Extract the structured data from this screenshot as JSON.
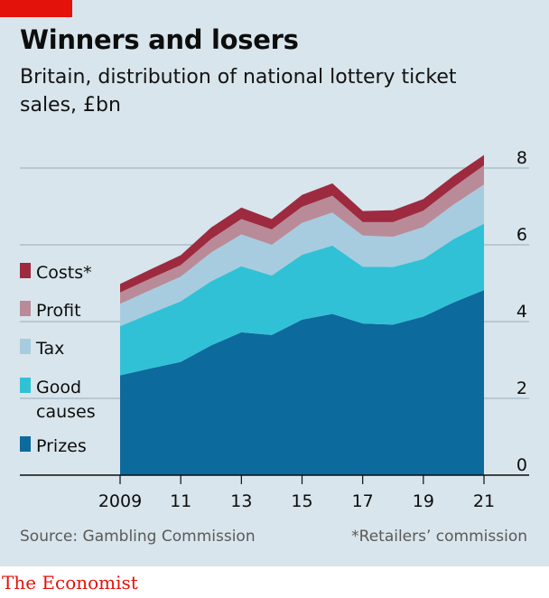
{
  "header": {
    "title": "Winners and losers",
    "subtitle": "Britain, distribution of national lottery ticket sales, £bn"
  },
  "footer": {
    "source": "Source: Gambling Commission",
    "note": "*Retailers’ commission",
    "brand": "The Economist"
  },
  "colors": {
    "background": "#d8e5ec",
    "accent_red": "#e3120b",
    "prizes": "#0d6a9d",
    "good_causes": "#31c1d6",
    "tax": "#a7cce0",
    "profit": "#b98b98",
    "costs": "#9e2a3f"
  },
  "chart_data": {
    "type": "area",
    "stacked": true,
    "x": [
      2009,
      2010,
      2011,
      2012,
      2013,
      2014,
      2015,
      2016,
      2017,
      2018,
      2019,
      2020,
      2021
    ],
    "x_tick_labels": [
      "2009",
      "11",
      "13",
      "15",
      "17",
      "19",
      "21"
    ],
    "x_tick_values": [
      2009,
      2011,
      2013,
      2015,
      2017,
      2019,
      2021
    ],
    "y_ticks": [
      0,
      2,
      4,
      6,
      8
    ],
    "ylim": [
      0,
      8
    ],
    "grid": true,
    "legend_position": "left, inside plot",
    "series": [
      {
        "name": "Prizes",
        "color": "#0d6a9d",
        "values": [
          2.6,
          2.78,
          2.95,
          3.38,
          3.72,
          3.65,
          4.05,
          4.2,
          3.95,
          3.92,
          4.13,
          4.5,
          4.82
        ]
      },
      {
        "name": "Good causes",
        "color": "#31c1d6",
        "values": [
          1.28,
          1.43,
          1.58,
          1.67,
          1.72,
          1.55,
          1.69,
          1.78,
          1.48,
          1.5,
          1.5,
          1.65,
          1.73
        ]
      },
      {
        "name": "Tax",
        "color": "#a7cce0",
        "values": [
          0.58,
          0.61,
          0.64,
          0.75,
          0.83,
          0.8,
          0.83,
          0.86,
          0.81,
          0.79,
          0.83,
          0.9,
          1.02
        ]
      },
      {
        "name": "Profit",
        "color": "#b98b98",
        "values": [
          0.3,
          0.3,
          0.3,
          0.35,
          0.4,
          0.4,
          0.42,
          0.44,
          0.35,
          0.38,
          0.43,
          0.45,
          0.5
        ]
      },
      {
        "name": "Costs*",
        "color": "#9e2a3f",
        "values": [
          0.22,
          0.24,
          0.26,
          0.3,
          0.3,
          0.27,
          0.31,
          0.32,
          0.29,
          0.31,
          0.3,
          0.3,
          0.27
        ]
      }
    ],
    "legend_order": [
      "Costs*",
      "Profit",
      "Tax",
      "Good",
      "causes",
      "Prizes"
    ]
  }
}
